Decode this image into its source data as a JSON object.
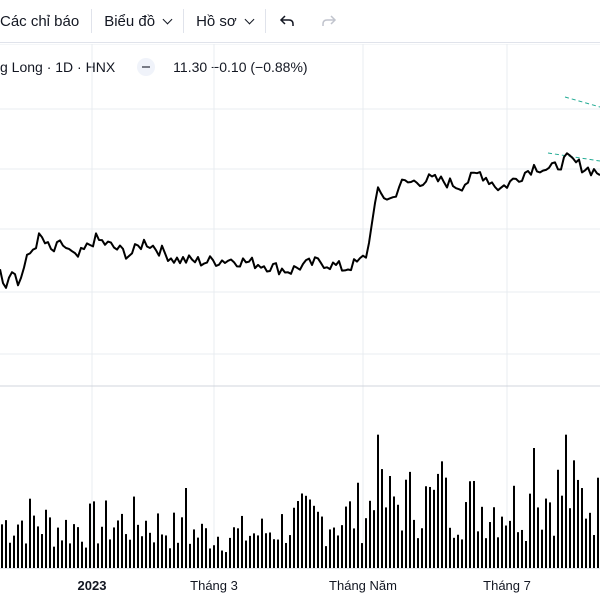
{
  "toolbar": {
    "indicators_label": "Các chỉ báo",
    "chart_label": "Biểu đồ",
    "profile_label": "Hồ sơ",
    "undo_icon": "undo-icon",
    "redo_icon": "redo-icon"
  },
  "legend": {
    "symbol_title": "g Long · 1D · HNX",
    "value_text": "11.30 −0.10 (−0.88%)"
  },
  "colors": {
    "price_line": "#000000",
    "volume_bar": "#000000",
    "trend_dashed": "#22ab94",
    "grid": "#e9ecf1"
  },
  "chart_data": {
    "type": "line",
    "x_tick_labels": [
      {
        "label": "2023",
        "bold": true
      },
      {
        "label": "Tháng 3",
        "bold": false
      },
      {
        "label": "Tháng Năm",
        "bold": false
      },
      {
        "label": "Tháng 7",
        "bold": false
      }
    ],
    "price_keypoints": [
      [
        0,
        11.5
      ],
      [
        5,
        10.5
      ],
      [
        12,
        11.4
      ],
      [
        18,
        10.6
      ],
      [
        28,
        11.8
      ],
      [
        40,
        12.7
      ],
      [
        52,
        12.0
      ],
      [
        62,
        12.4
      ],
      [
        76,
        11.7
      ],
      [
        95,
        12.6
      ],
      [
        130,
        11.9
      ],
      [
        145,
        12.5
      ],
      [
        175,
        11.7
      ],
      [
        205,
        11.6
      ],
      [
        230,
        11.7
      ],
      [
        260,
        11.5
      ],
      [
        290,
        11.2
      ],
      [
        300,
        11.4
      ],
      [
        320,
        11.6
      ],
      [
        345,
        11.3
      ],
      [
        360,
        11.6
      ],
      [
        368,
        12.0
      ],
      [
        372,
        13.5
      ],
      [
        378,
        14.6
      ],
      [
        392,
        14.3
      ],
      [
        400,
        15.0
      ],
      [
        430,
        15.2
      ],
      [
        445,
        15.1
      ],
      [
        460,
        14.9
      ],
      [
        480,
        15.5
      ],
      [
        500,
        14.8
      ],
      [
        515,
        15.2
      ],
      [
        535,
        15.8
      ],
      [
        550,
        15.6
      ],
      [
        568,
        16.1
      ],
      [
        585,
        15.7
      ],
      [
        600,
        15.5
      ]
    ],
    "volume_keypoints": [
      [
        0,
        20
      ],
      [
        30,
        22
      ],
      [
        60,
        18
      ],
      [
        100,
        20
      ],
      [
        140,
        21
      ],
      [
        180,
        16
      ],
      [
        220,
        15
      ],
      [
        260,
        16
      ],
      [
        300,
        22
      ],
      [
        340,
        22
      ],
      [
        370,
        28
      ],
      [
        400,
        30
      ],
      [
        440,
        30
      ],
      [
        480,
        28
      ],
      [
        520,
        28
      ],
      [
        560,
        35
      ],
      [
        600,
        28
      ]
    ],
    "volume_spikes": [
      [
        127,
        45
      ],
      [
        186,
        30
      ],
      [
        299,
        35
      ],
      [
        367,
        50
      ],
      [
        378,
        50
      ],
      [
        442,
        40
      ],
      [
        483,
        45
      ],
      [
        532,
        45
      ],
      [
        566,
        50
      ]
    ]
  }
}
